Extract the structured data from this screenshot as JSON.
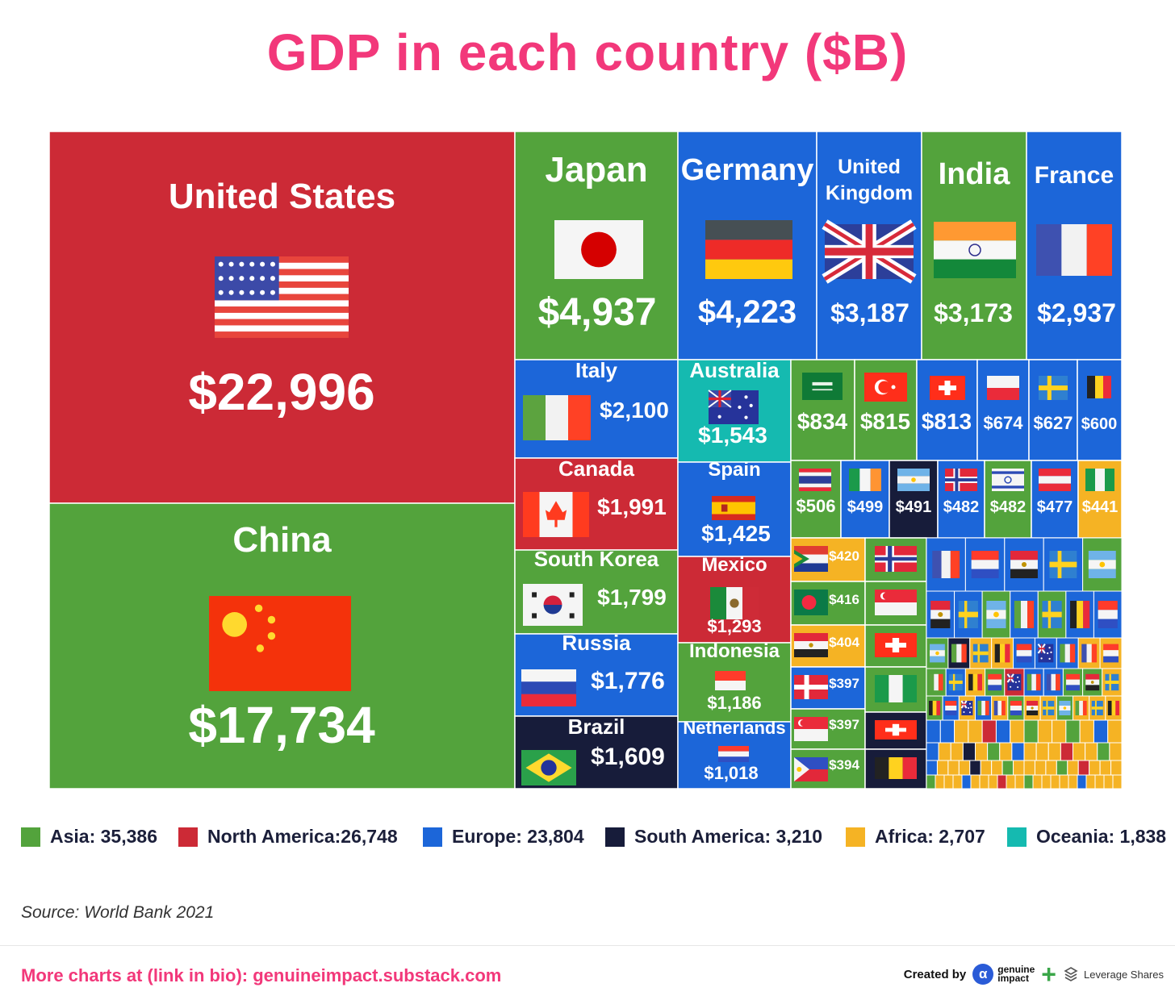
{
  "colors": {
    "title": "#f2387a",
    "Asia": "#53a33c",
    "North America": "#cc2a36",
    "Europe": "#1c66d9",
    "South America": "#171c3a",
    "Africa": "#f5b324",
    "Oceania": "#15bab0"
  },
  "chart_data": {
    "type": "treemap",
    "title": "GDP in each country ($B)",
    "unit": "$B",
    "items": [
      {
        "name": "United States",
        "value": 22996,
        "region": "North America",
        "flag": "us"
      },
      {
        "name": "China",
        "value": 17734,
        "region": "Asia",
        "flag": "cn"
      },
      {
        "name": "Japan",
        "value": 4937,
        "region": "Asia",
        "flag": "jp"
      },
      {
        "name": "Germany",
        "value": 4223,
        "region": "Europe",
        "flag": "de"
      },
      {
        "name": "United Kingdom",
        "value": 3187,
        "region": "Europe",
        "flag": "gb"
      },
      {
        "name": "India",
        "value": 3173,
        "region": "Asia",
        "flag": "in"
      },
      {
        "name": "France",
        "value": 2937,
        "region": "Europe",
        "flag": "fr"
      },
      {
        "name": "Italy",
        "value": 2100,
        "region": "Europe",
        "flag": "it"
      },
      {
        "name": "Canada",
        "value": 1991,
        "region": "North America",
        "flag": "ca"
      },
      {
        "name": "South Korea",
        "value": 1799,
        "region": "Asia",
        "flag": "kr"
      },
      {
        "name": "Russia",
        "value": 1776,
        "region": "Europe",
        "flag": "ru"
      },
      {
        "name": "Brazil",
        "value": 1609,
        "region": "South America",
        "flag": "br"
      },
      {
        "name": "Australia",
        "value": 1543,
        "region": "Oceania",
        "flag": "au"
      },
      {
        "name": "Spain",
        "value": 1425,
        "region": "Europe",
        "flag": "es"
      },
      {
        "name": "Mexico",
        "value": 1293,
        "region": "North America",
        "flag": "mx"
      },
      {
        "name": "Indonesia",
        "value": 1186,
        "region": "Asia",
        "flag": "id"
      },
      {
        "name": "Netherlands",
        "value": 1018,
        "region": "Europe",
        "flag": "nl"
      },
      {
        "name": "",
        "value": 834,
        "region": "Asia",
        "flag": "sa"
      },
      {
        "name": "",
        "value": 815,
        "region": "Asia",
        "flag": "tr"
      },
      {
        "name": "",
        "value": 813,
        "region": "Europe",
        "flag": "ch"
      },
      {
        "name": "",
        "value": 674,
        "region": "Europe",
        "flag": "pl"
      },
      {
        "name": "",
        "value": 627,
        "region": "Europe",
        "flag": "se"
      },
      {
        "name": "",
        "value": 600,
        "region": "Europe",
        "flag": "be"
      },
      {
        "name": "",
        "value": 506,
        "region": "Asia",
        "flag": "th"
      },
      {
        "name": "",
        "value": 499,
        "region": "Europe",
        "flag": "ie"
      },
      {
        "name": "",
        "value": 491,
        "region": "South America",
        "flag": "ar"
      },
      {
        "name": "",
        "value": 482,
        "region": "Europe",
        "flag": "no"
      },
      {
        "name": "",
        "value": 482,
        "region": "Asia",
        "flag": "il"
      },
      {
        "name": "",
        "value": 477,
        "region": "Europe",
        "flag": "at"
      },
      {
        "name": "",
        "value": 441,
        "region": "Africa",
        "flag": "ng"
      },
      {
        "name": "",
        "value": 420,
        "region": "Africa",
        "flag": "za"
      },
      {
        "name": "",
        "value": 416,
        "region": "Asia",
        "flag": "bd"
      },
      {
        "name": "",
        "value": 404,
        "region": "Africa",
        "flag": "eg"
      },
      {
        "name": "",
        "value": 397,
        "region": "Europe",
        "flag": "dk"
      },
      {
        "name": "",
        "value": 397,
        "region": "Asia",
        "flag": "sg"
      },
      {
        "name": "",
        "value": 394,
        "region": "Asia",
        "flag": "ph"
      }
    ]
  },
  "legend": [
    {
      "label": "Asia: 35,386",
      "region": "Asia"
    },
    {
      "label": "North America:26,748",
      "region": "North America"
    },
    {
      "label": "Europe: 23,804",
      "region": "Europe"
    },
    {
      "label": "South America: 3,210",
      "region": "South America"
    },
    {
      "label": "Africa: 2,707",
      "region": "Africa"
    },
    {
      "label": "Oceania: 1,838",
      "region": "Oceania"
    }
  ],
  "source": "Source: World Bank 2021",
  "footer": {
    "link": "More charts at (link in bio): genuineimpact.substack.com",
    "created_by": "Created by",
    "gi_mark": "α",
    "gi_line1": "genuine",
    "gi_line2": "impact",
    "plus": "+",
    "ls_name": "Leverage Shares"
  }
}
